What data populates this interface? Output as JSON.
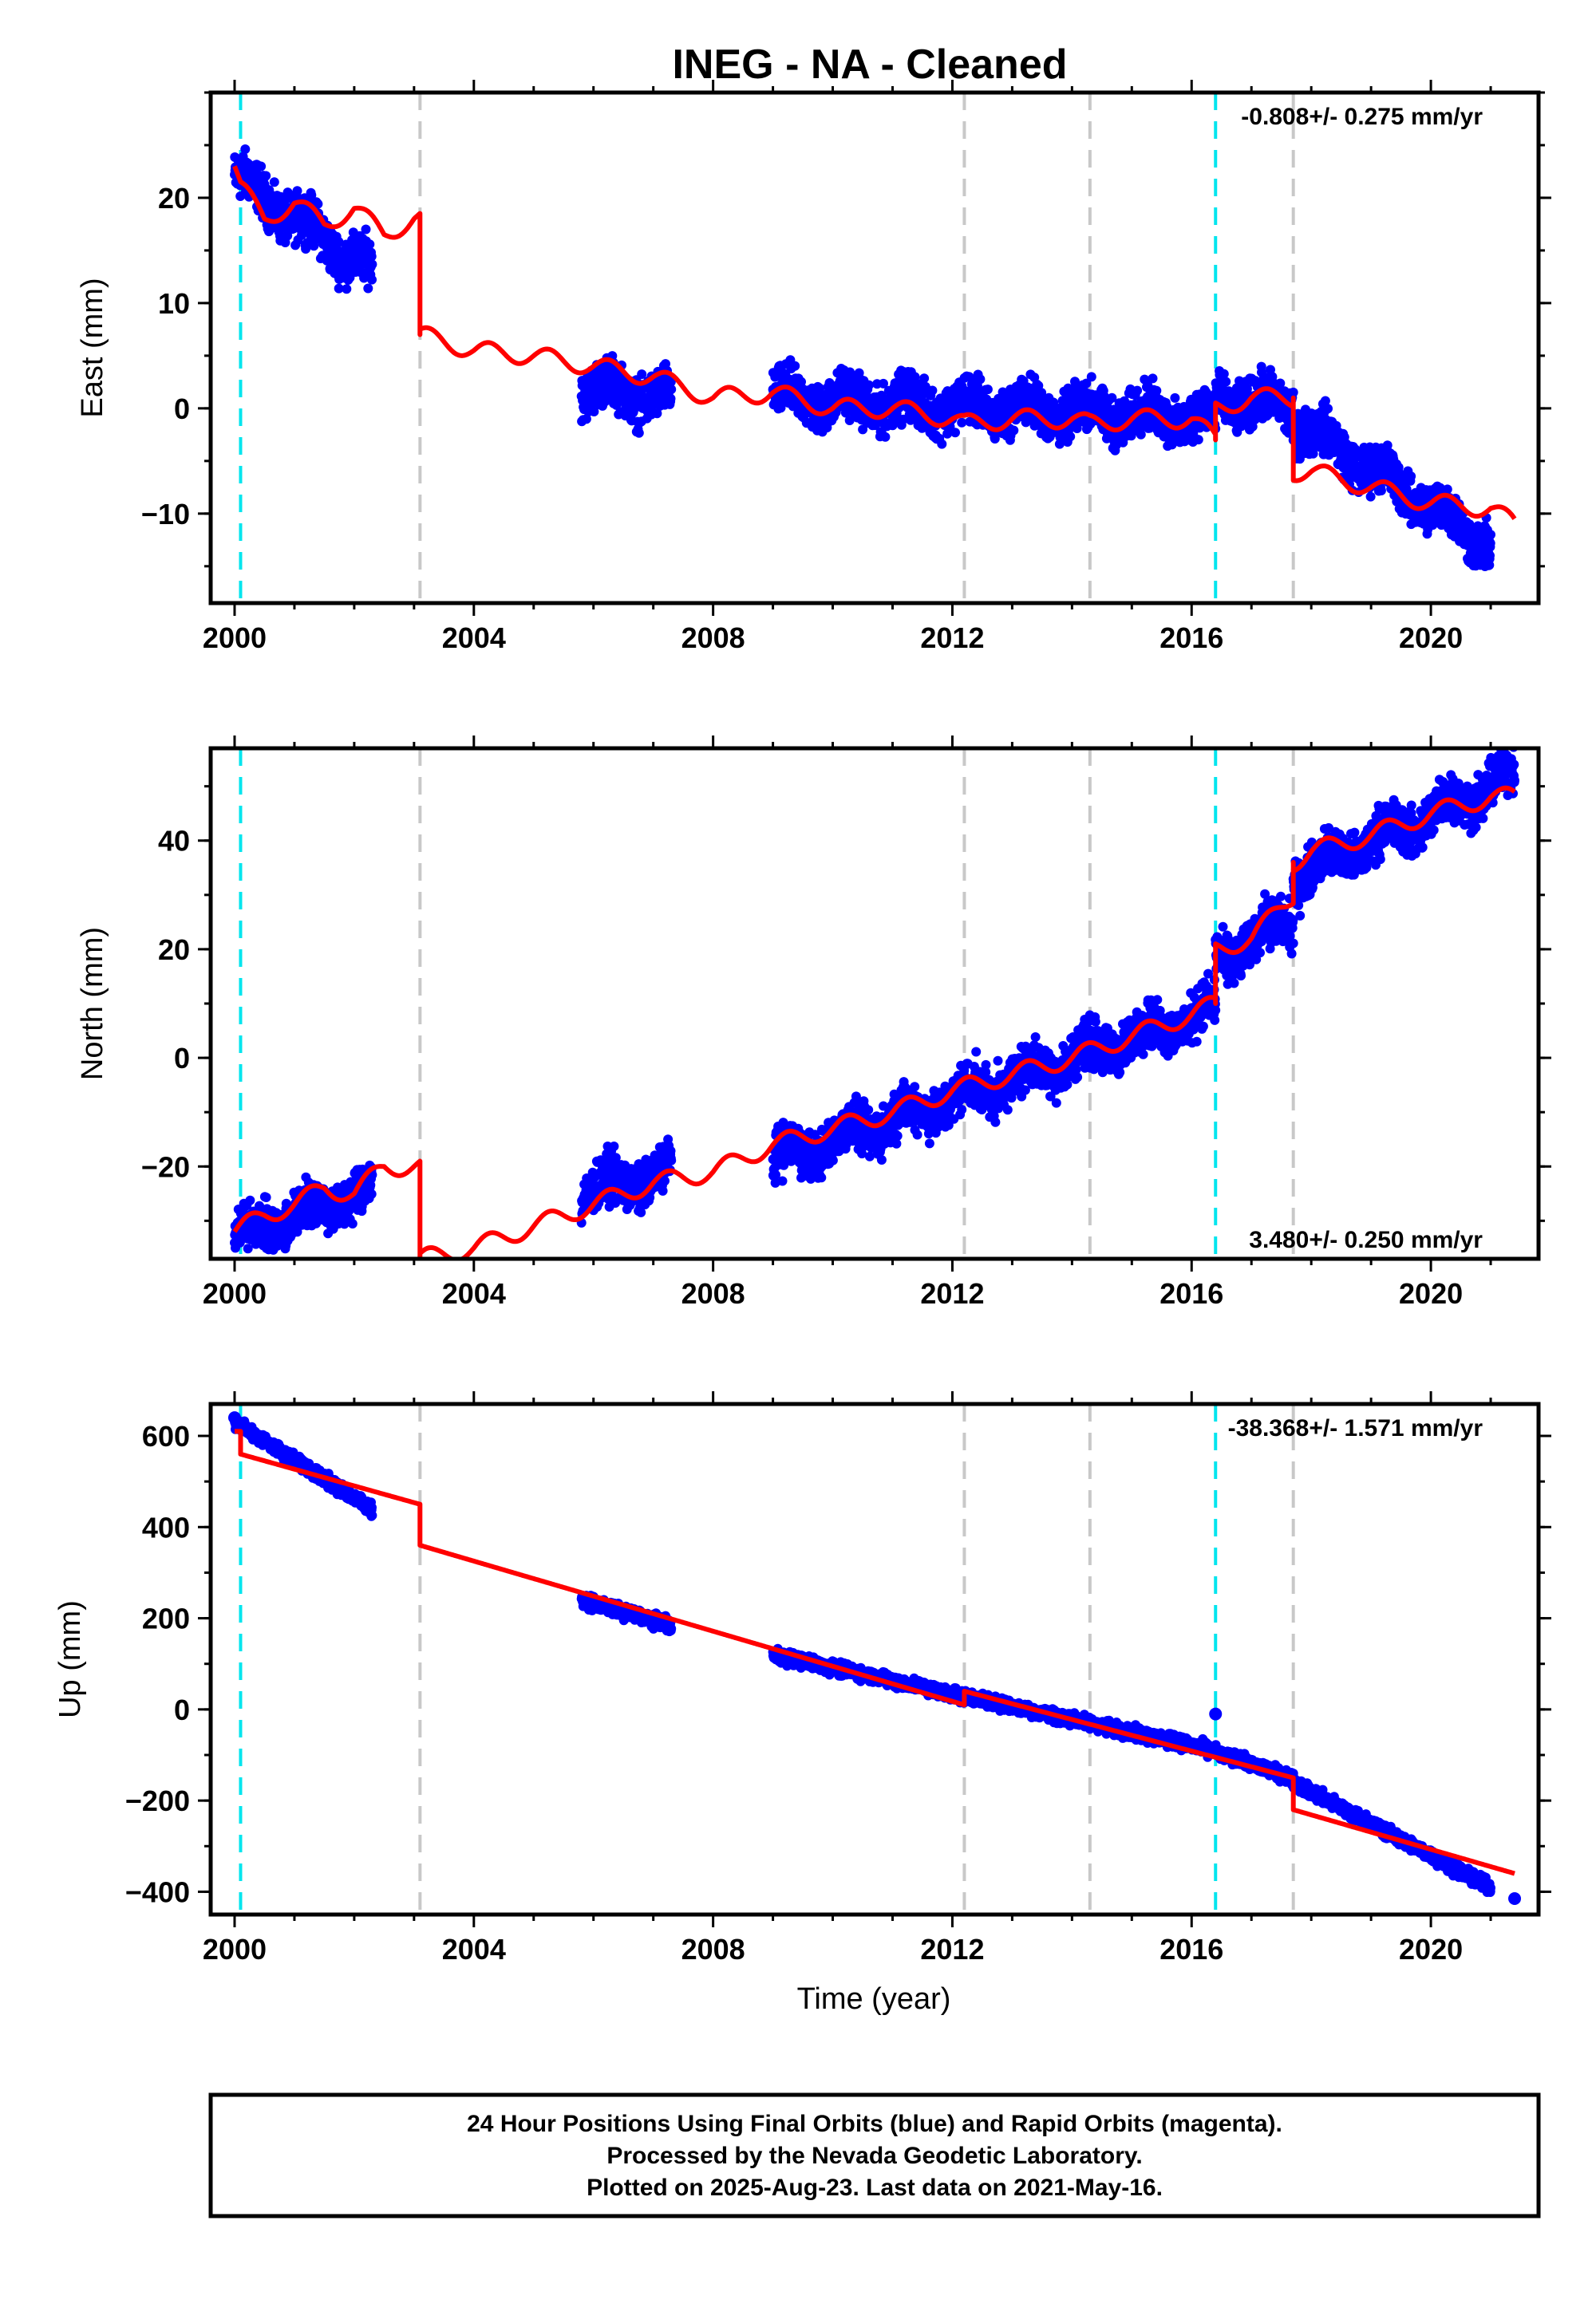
{
  "title": "INEG  - NA - Cleaned",
  "xlabel": "Time (year)",
  "colors": {
    "data": "#0000ff",
    "model": "#ff0000",
    "earthquake": "#00e5ee",
    "equipment": "#c8c8c8"
  },
  "footer": {
    "line1": "24 Hour Positions Using Final Orbits (blue) and Rapid Orbits (magenta).",
    "line2": "Processed by the Nevada Geodetic Laboratory.",
    "line3": "Plotted on 2025-Aug-23. Last data on 2021-May-16."
  },
  "chart_data": [
    {
      "type": "scatter",
      "component": "East",
      "ylabel": "East (mm)",
      "rate_text": "-0.808+/- 0.275 mm/yr",
      "rate_position": "top-right",
      "xlim": [
        1999.6,
        2021.8
      ],
      "ylim": [
        -18.5,
        30
      ],
      "xticks": [
        2000,
        2004,
        2008,
        2012,
        2016,
        2020
      ],
      "yticks": [
        -10,
        0,
        10,
        20
      ],
      "ytick_labels": [
        "−10",
        "0",
        "10",
        "20"
      ],
      "earthquake_lines": [
        2000.1,
        2016.4
      ],
      "equipment_lines": [
        2003.1,
        2012.2,
        2014.3,
        2017.7
      ],
      "data_segments": [
        {
          "x": [
            2000.0,
            2002.3
          ],
          "y": [
            22,
            13
          ]
        },
        {
          "x": [
            2005.8,
            2007.3
          ],
          "y": [
            2,
            1
          ]
        },
        {
          "x": [
            2009.0,
            2016.4
          ],
          "y": [
            1,
            -1
          ]
        },
        {
          "x": [
            2016.4,
            2017.7
          ],
          "y": [
            1,
            0
          ]
        },
        {
          "x": [
            2017.7,
            2021.0
          ],
          "y": [
            -1,
            -13
          ]
        }
      ],
      "model_x": [
        2000.0,
        2000.1,
        2000.5,
        2001.0,
        2001.5,
        2002.0,
        2002.5,
        2003.0,
        2003.1,
        2003.1,
        2004.0,
        2005.0,
        2006.0,
        2007.0,
        2008.0,
        2009.0,
        2010.0,
        2011.0,
        2012.0,
        2012.2,
        2013.0,
        2014.0,
        2014.3,
        2015.0,
        2016.0,
        2016.4,
        2016.4,
        2017.0,
        2017.7,
        2017.7,
        2018.0,
        2019.0,
        2020.0,
        2021.0,
        2021.4
      ],
      "model_y": [
        23,
        21,
        18,
        19.5,
        17.5,
        19,
        16.5,
        18,
        18,
        7,
        5.5,
        5,
        4,
        3,
        1,
        1.5,
        0,
        0,
        -1,
        -1.5,
        -1,
        -1,
        -1.5,
        -1,
        -1,
        -3,
        0,
        1,
        1,
        -6,
        -6,
        -7.5,
        -9,
        -9.5,
        -11
      ]
    },
    {
      "type": "scatter",
      "component": "North",
      "ylabel": "North (mm)",
      "rate_text": "3.480+/- 0.250 mm/yr",
      "rate_position": "bottom-right",
      "xlim": [
        1999.6,
        2021.8
      ],
      "ylim": [
        -37,
        57
      ],
      "xticks": [
        2000,
        2004,
        2008,
        2012,
        2016,
        2020
      ],
      "yticks": [
        -20,
        0,
        20,
        40
      ],
      "ytick_labels": [
        "−20",
        "0",
        "20",
        "40"
      ],
      "earthquake_lines": [
        2000.1,
        2016.4
      ],
      "equipment_lines": [
        2003.1,
        2012.2,
        2014.3,
        2017.7
      ],
      "data_segments": [
        {
          "x": [
            2000.0,
            2002.3
          ],
          "y": [
            -33,
            -24
          ]
        },
        {
          "x": [
            2005.8,
            2007.3
          ],
          "y": [
            -25,
            -21
          ]
        },
        {
          "x": [
            2009.0,
            2016.4
          ],
          "y": [
            -19,
            9
          ]
        },
        {
          "x": [
            2016.4,
            2017.7
          ],
          "y": [
            18,
            26
          ]
        },
        {
          "x": [
            2017.7,
            2021.4
          ],
          "y": [
            33,
            52
          ]
        }
      ],
      "model_x": [
        2000.0,
        2000.5,
        2001.0,
        2001.5,
        2002.0,
        2002.5,
        2003.0,
        2003.1,
        2003.1,
        2004.0,
        2005.0,
        2006.0,
        2007.0,
        2008.0,
        2009.0,
        2010.0,
        2011.0,
        2012.0,
        2013.0,
        2014.0,
        2015.0,
        2016.0,
        2016.4,
        2016.4,
        2017.0,
        2017.7,
        2017.7,
        2018.0,
        2019.0,
        2020.0,
        2021.0,
        2021.4
      ],
      "model_y": [
        -32,
        -29,
        -27,
        -24,
        -25,
        -20,
        -20,
        -20,
        -37,
        -35,
        -31,
        -27,
        -23,
        -21,
        -16,
        -13,
        -10,
        -6,
        -3,
        0,
        4,
        8,
        10,
        20,
        22,
        30,
        36,
        38,
        41,
        45,
        48,
        48
      ]
    },
    {
      "type": "scatter",
      "component": "Up",
      "ylabel": "Up (mm)",
      "rate_text": "-38.368+/- 1.571 mm/yr",
      "rate_position": "top-right",
      "xlim": [
        1999.6,
        2021.8
      ],
      "ylim": [
        -450,
        670
      ],
      "xticks": [
        2000,
        2004,
        2008,
        2012,
        2016,
        2020
      ],
      "yticks": [
        -400,
        -200,
        0,
        200,
        400,
        600
      ],
      "ytick_labels": [
        "−400",
        "−200",
        "0",
        "200",
        "400",
        "600"
      ],
      "earthquake_lines": [
        2000.1,
        2016.4
      ],
      "equipment_lines": [
        2003.1,
        2012.2,
        2014.3,
        2017.7
      ],
      "data_segments": [
        {
          "x": [
            2000.0,
            2002.3
          ],
          "y": [
            630,
            440
          ]
        },
        {
          "x": [
            2005.8,
            2007.3
          ],
          "y": [
            240,
            185
          ]
        },
        {
          "x": [
            2009.0,
            2016.4
          ],
          "y": [
            120,
            -90
          ]
        },
        {
          "x": [
            2016.4,
            2017.7
          ],
          "y": [
            -95,
            -150
          ]
        },
        {
          "x": [
            2017.7,
            2021.0
          ],
          "y": [
            -160,
            -390
          ]
        }
      ],
      "outliers": [
        {
          "x": 2000.0,
          "y": 640
        },
        {
          "x": 2016.4,
          "y": -10
        },
        {
          "x": 2021.4,
          "y": -415
        }
      ],
      "model_x": [
        2000.0,
        2000.1,
        2000.1,
        2003.1,
        2003.1,
        2012.2,
        2012.2,
        2017.7,
        2017.7,
        2021.4
      ],
      "model_y": [
        610,
        610,
        560,
        450,
        360,
        10,
        40,
        -150,
        -220,
        -360
      ]
    }
  ]
}
